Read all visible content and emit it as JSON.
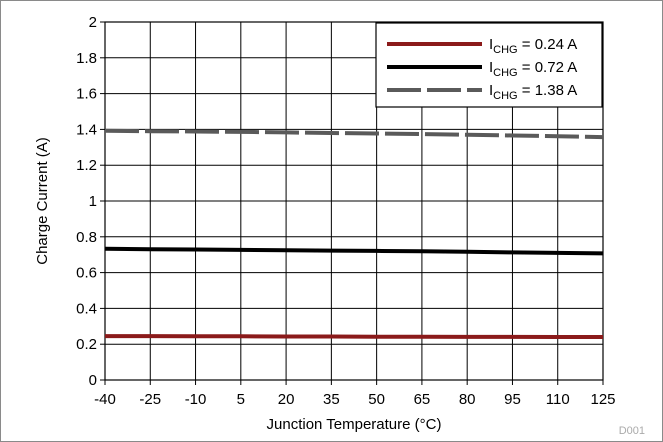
{
  "chart_data": {
    "type": "line",
    "xlabel": "Junction Temperature (°C)",
    "ylabel": "Charge Current (A)",
    "xlim": [
      -40,
      125
    ],
    "ylim": [
      0,
      2
    ],
    "x_ticks": [
      -40,
      -25,
      -10,
      5,
      20,
      35,
      50,
      65,
      80,
      95,
      110,
      125
    ],
    "y_ticks": [
      "0",
      "0.2",
      "0.4",
      "0.6",
      "0.8",
      "1",
      "1.2",
      "1.4",
      "1.6",
      "1.8",
      "2"
    ],
    "grid": true,
    "legend_position": "top-right",
    "x": [
      -40,
      -25,
      -10,
      5,
      20,
      35,
      50,
      65,
      80,
      95,
      110,
      125
    ],
    "series": [
      {
        "name_main": "I",
        "name_sub": "CHG",
        "name_rest": " = 0.24 A",
        "color": "#8b1a1a",
        "dash": "solid",
        "values": [
          0.245,
          0.245,
          0.244,
          0.244,
          0.243,
          0.243,
          0.242,
          0.242,
          0.241,
          0.241,
          0.24,
          0.24
        ]
      },
      {
        "name_main": "I",
        "name_sub": "CHG",
        "name_rest": " = 0.72 A",
        "color": "#000000",
        "dash": "solid",
        "values": [
          0.733,
          0.731,
          0.729,
          0.727,
          0.725,
          0.723,
          0.721,
          0.719,
          0.716,
          0.713,
          0.71,
          0.707
        ]
      },
      {
        "name_main": "I",
        "name_sub": "CHG",
        "name_rest": " = 1.38 A",
        "color": "#5a5a5a",
        "dash": "dashed",
        "values": [
          1.392,
          1.39,
          1.388,
          1.386,
          1.383,
          1.38,
          1.377,
          1.374,
          1.37,
          1.366,
          1.362,
          1.357
        ]
      }
    ],
    "footer_label": "D001"
  }
}
